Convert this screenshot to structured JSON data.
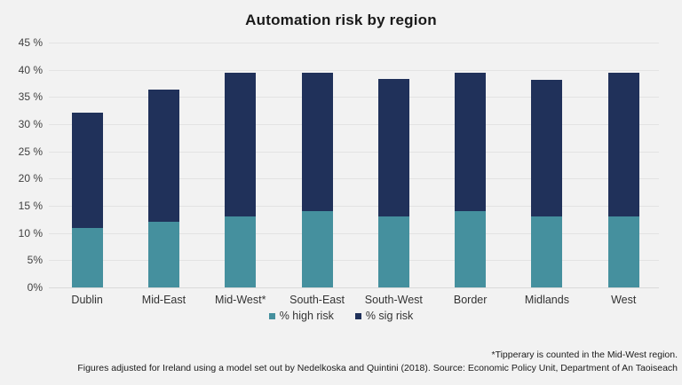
{
  "page": {
    "background_color": "#f2f2f2",
    "gridline_color": "#e3e3e3"
  },
  "chart_data": {
    "type": "bar",
    "stacked": true,
    "title": "Automation risk by region",
    "categories": [
      "Dublin",
      "Mid-East",
      "Mid-West*",
      "South-East",
      "South-West",
      "Border",
      "Midlands",
      "West"
    ],
    "series": [
      {
        "name": "% high risk",
        "color": "#45909e",
        "values": [
          11.0,
          12.0,
          13.0,
          14.0,
          13.1,
          14.0,
          13.0,
          13.1
        ]
      },
      {
        "name": "% sig risk",
        "color": "#20315a",
        "values": [
          21.2,
          24.3,
          26.5,
          25.5,
          25.2,
          25.5,
          25.2,
          26.4
        ]
      }
    ],
    "stacked_totals": [
      32.2,
      36.3,
      39.5,
      39.5,
      38.3,
      39.5,
      38.2,
      39.5
    ],
    "xlabel": "",
    "ylabel": "",
    "ylim": [
      0,
      45
    ],
    "grid": true,
    "legend_position": "bottom-center",
    "yticks": [
      {
        "value": 45,
        "label": "45 %"
      },
      {
        "value": 40,
        "label": "40 %"
      },
      {
        "value": 35,
        "label": "35 %"
      },
      {
        "value": 30,
        "label": "30 %"
      },
      {
        "value": 25,
        "label": "25 %"
      },
      {
        "value": 20,
        "label": "20 %"
      },
      {
        "value": 15,
        "label": "15 %"
      },
      {
        "value": 10,
        "label": "10 %"
      },
      {
        "value": 5,
        "label": "5%"
      },
      {
        "value": 0,
        "label": "0%"
      }
    ]
  },
  "footnotes": {
    "line1": "*Tipperary is counted in the Mid-West region.",
    "line2": "Figures adjusted for Ireland using a model set out by Nedelkoska and Quintini (2018). Source: Economic Policy Unit, Department of An Taoiseach"
  }
}
